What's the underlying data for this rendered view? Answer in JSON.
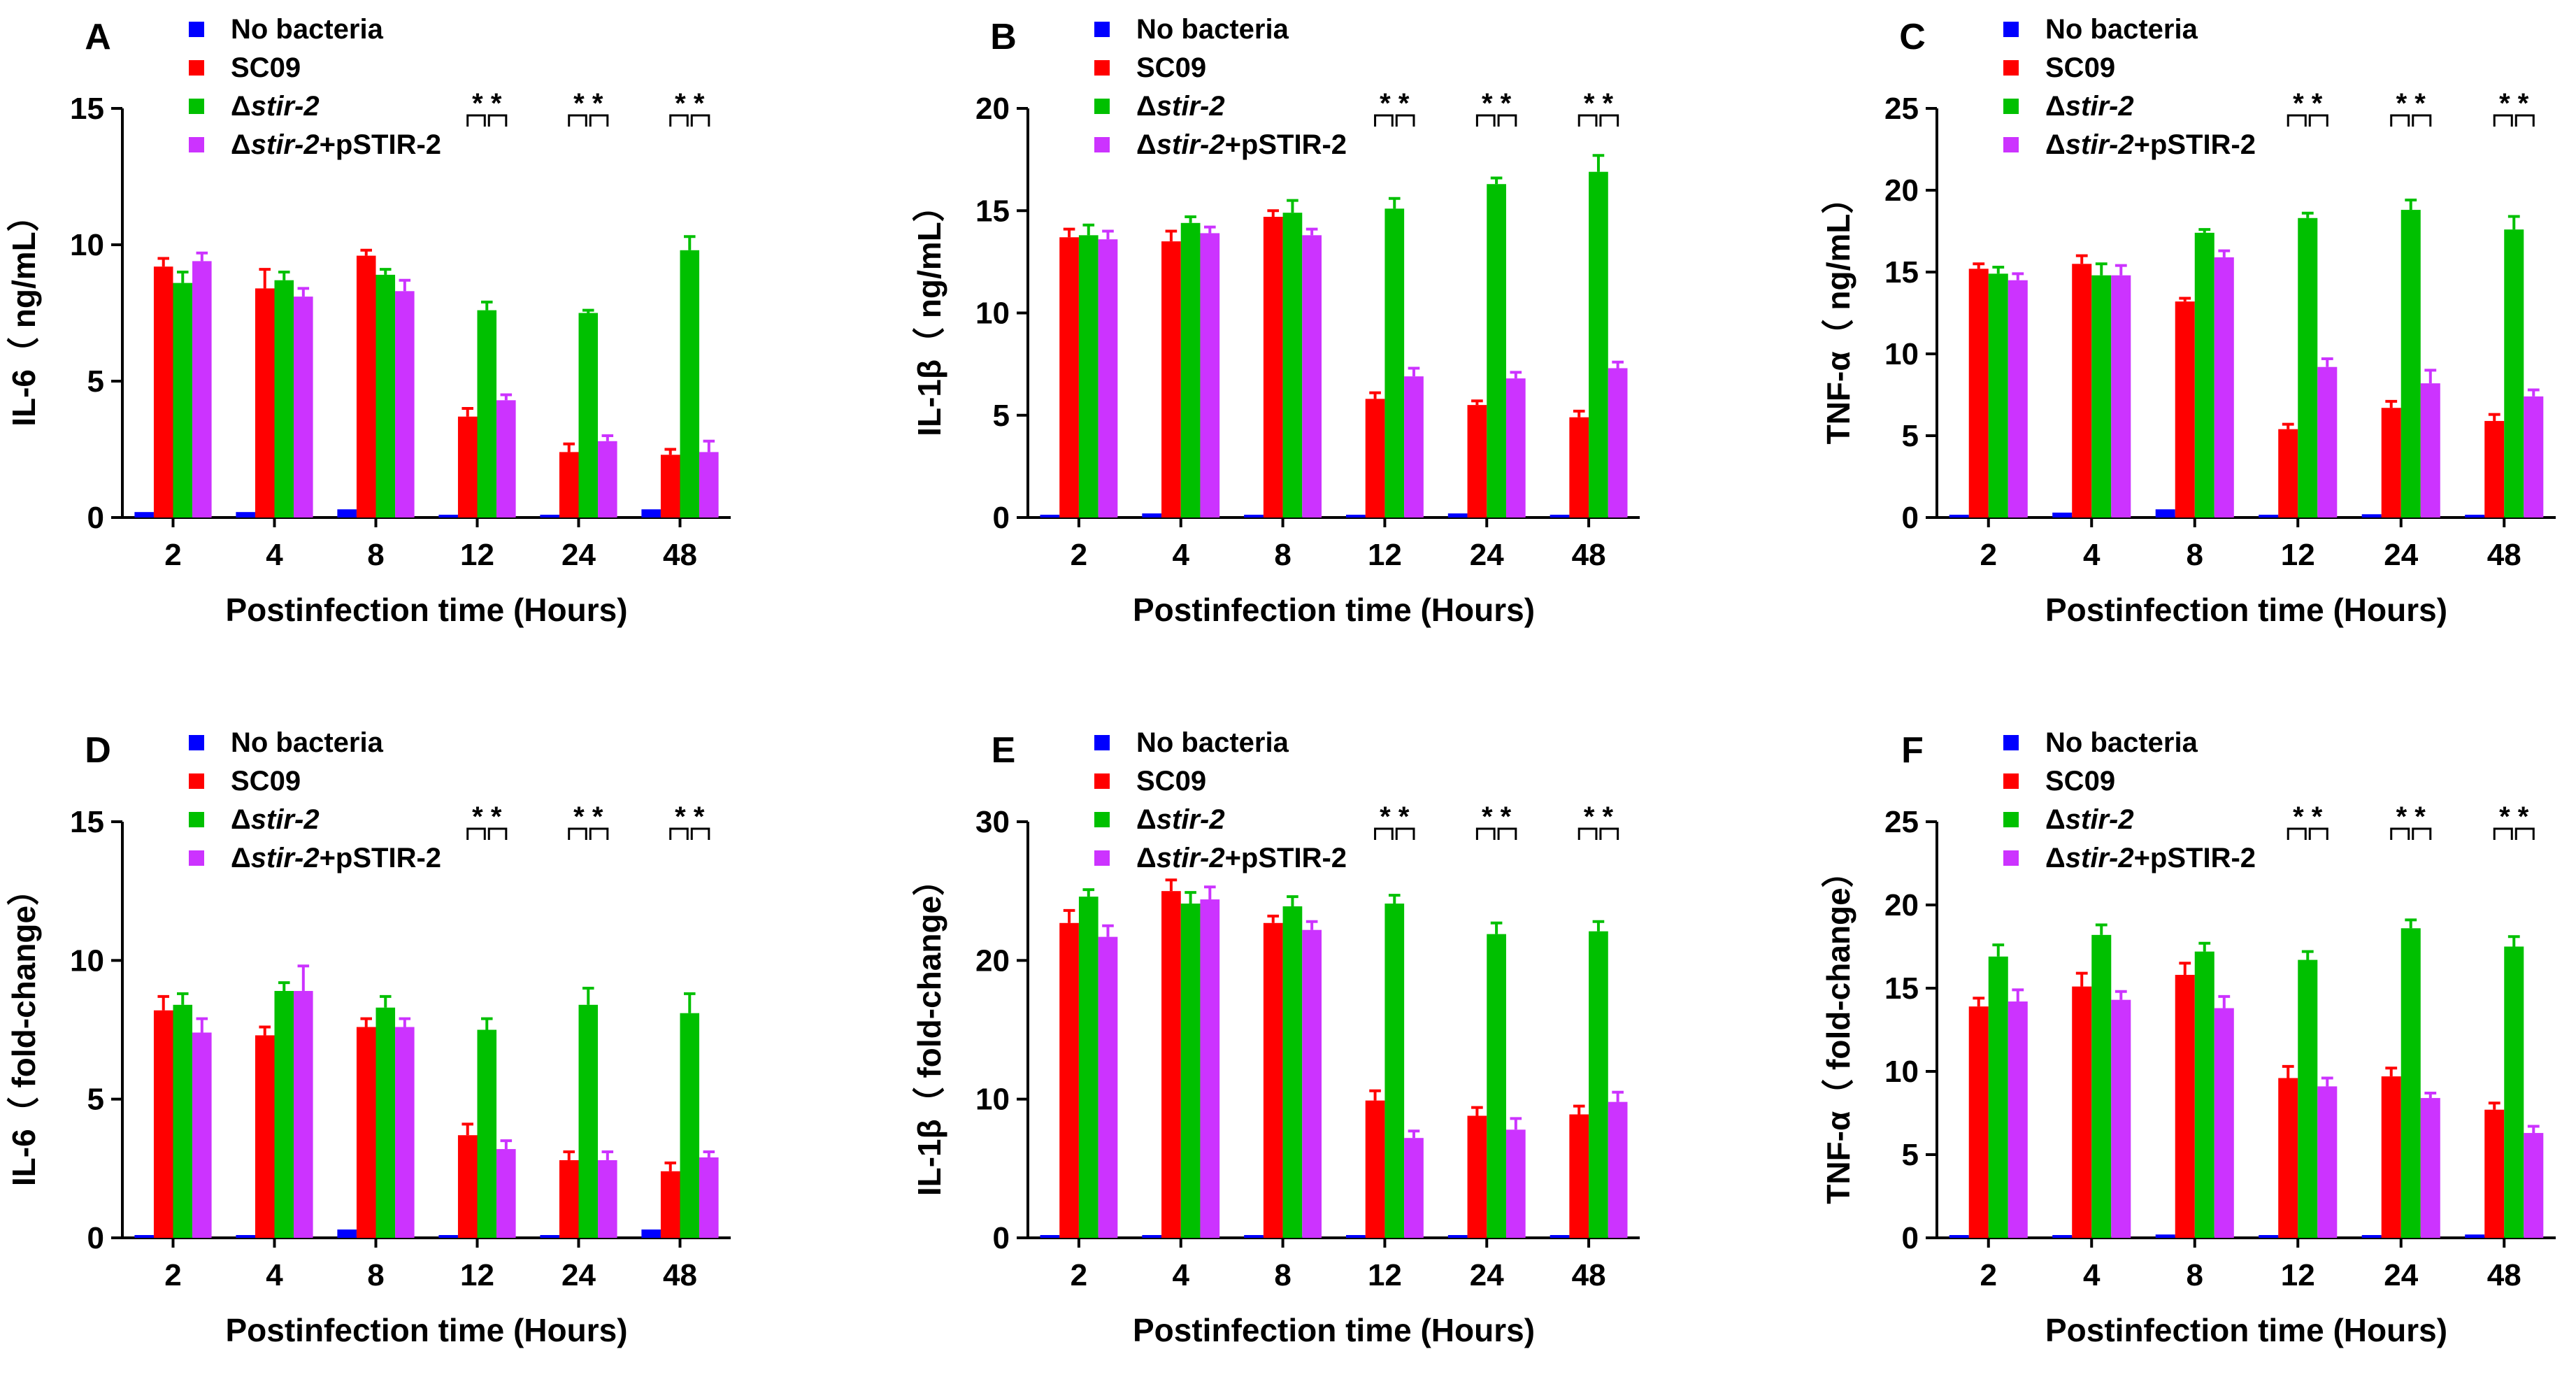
{
  "colors": {
    "No bacteria": "#0000ff",
    "SC09": "#ff0000",
    "stir2": "#00c000",
    "complement": "#cc33ff",
    "axis": "#000000"
  },
  "legend_entries": [
    {
      "prefix": "",
      "italic": "",
      "suffix": "No bacteria",
      "color_key": "No bacteria"
    },
    {
      "prefix": "",
      "italic": "",
      "suffix": "SC09",
      "color_key": "SC09"
    },
    {
      "prefix": "Δ",
      "italic": "stir-2",
      "suffix": "",
      "color_key": "stir2"
    },
    {
      "prefix": "Δ",
      "italic": "stir-2",
      "suffix": "+pSTIR-2",
      "color_key": "complement"
    }
  ],
  "chart_data": [
    {
      "type": "bar",
      "panel": "A",
      "title": "",
      "xlabel": "Postinfection time (Hours)",
      "ylabel": "IL-6（ ng/mL）",
      "categories": [
        "2",
        "4",
        "8",
        "12",
        "24",
        "48"
      ],
      "ylim": [
        0,
        15
      ],
      "yticks": [
        0,
        5,
        10,
        15
      ],
      "legend_position": "top-left",
      "significance": {
        "categories": [
          "12",
          "24",
          "48"
        ],
        "label": "* *"
      },
      "series": [
        {
          "name": "No bacteria",
          "values": [
            0.2,
            0.2,
            0.3,
            0.05,
            0.1,
            0.3
          ],
          "errors": [
            0.05,
            0.05,
            0.05,
            0.05,
            0.05,
            0.05
          ]
        },
        {
          "name": "SC09",
          "values": [
            9.2,
            8.4,
            9.6,
            3.7,
            2.4,
            2.3
          ],
          "errors": [
            0.3,
            0.7,
            0.2,
            0.3,
            0.3,
            0.2
          ]
        },
        {
          "name": "Δstir-2",
          "values": [
            8.6,
            8.7,
            8.9,
            7.6,
            7.5,
            9.8
          ],
          "errors": [
            0.4,
            0.3,
            0.2,
            0.3,
            0.1,
            0.5
          ]
        },
        {
          "name": "Δstir-2+pSTIR-2",
          "values": [
            9.4,
            8.1,
            8.3,
            4.3,
            2.8,
            2.4
          ],
          "errors": [
            0.3,
            0.3,
            0.4,
            0.2,
            0.2,
            0.4
          ]
        }
      ]
    },
    {
      "type": "bar",
      "panel": "B",
      "title": "",
      "xlabel": "Postinfection time (Hours)",
      "ylabel": "IL-1β（ ng/mL）",
      "categories": [
        "2",
        "4",
        "8",
        "12",
        "24",
        "48"
      ],
      "ylim": [
        0,
        20
      ],
      "yticks": [
        0,
        5,
        10,
        15,
        20
      ],
      "legend_position": "top-left",
      "significance": {
        "categories": [
          "12",
          "24",
          "48"
        ],
        "label": "* *"
      },
      "series": [
        {
          "name": "No bacteria",
          "values": [
            0.1,
            0.2,
            0.1,
            0.05,
            0.2,
            0.1
          ],
          "errors": [
            0.05,
            0.05,
            0.05,
            0.05,
            0.05,
            0.05
          ]
        },
        {
          "name": "SC09",
          "values": [
            13.7,
            13.5,
            14.7,
            5.8,
            5.5,
            4.9
          ],
          "errors": [
            0.4,
            0.5,
            0.3,
            0.3,
            0.2,
            0.3
          ]
        },
        {
          "name": "Δstir-2",
          "values": [
            13.8,
            14.4,
            14.9,
            15.1,
            16.3,
            16.9
          ],
          "errors": [
            0.5,
            0.3,
            0.6,
            0.5,
            0.3,
            0.8
          ]
        },
        {
          "name": "Δstir-2+pSTIR-2",
          "values": [
            13.6,
            13.9,
            13.8,
            6.9,
            6.8,
            7.3
          ],
          "errors": [
            0.4,
            0.3,
            0.3,
            0.4,
            0.3,
            0.3
          ]
        }
      ]
    },
    {
      "type": "bar",
      "panel": "C",
      "title": "",
      "xlabel": "Postinfection time (Hours)",
      "ylabel": "TNF-α（ ng/mL）",
      "categories": [
        "2",
        "4",
        "8",
        "12",
        "24",
        "48"
      ],
      "ylim": [
        0,
        25
      ],
      "yticks": [
        0,
        5,
        10,
        15,
        20,
        25
      ],
      "legend_position": "top-left",
      "significance": {
        "categories": [
          "12",
          "24",
          "48"
        ],
        "label": "* *"
      },
      "series": [
        {
          "name": "No bacteria",
          "values": [
            0.1,
            0.3,
            0.5,
            0.1,
            0.2,
            0.1
          ],
          "errors": [
            0.05,
            0.05,
            0.05,
            0.05,
            0.05,
            0.05
          ]
        },
        {
          "name": "SC09",
          "values": [
            15.2,
            15.5,
            13.2,
            5.4,
            6.7,
            5.9
          ],
          "errors": [
            0.3,
            0.5,
            0.2,
            0.3,
            0.4,
            0.4
          ]
        },
        {
          "name": "Δstir-2",
          "values": [
            14.9,
            14.8,
            17.4,
            18.3,
            18.8,
            17.6
          ],
          "errors": [
            0.4,
            0.7,
            0.2,
            0.3,
            0.6,
            0.8
          ]
        },
        {
          "name": "Δstir-2+pSTIR-2",
          "values": [
            14.5,
            14.8,
            15.9,
            9.2,
            8.2,
            7.4
          ],
          "errors": [
            0.4,
            0.6,
            0.4,
            0.5,
            0.8,
            0.4
          ]
        }
      ]
    },
    {
      "type": "bar",
      "panel": "D",
      "title": "",
      "xlabel": "Postinfection time (Hours)",
      "ylabel": "IL-6（ fold-change）",
      "categories": [
        "2",
        "4",
        "8",
        "12",
        "24",
        "48"
      ],
      "ylim": [
        0,
        15
      ],
      "yticks": [
        0,
        5,
        10,
        15
      ],
      "legend_position": "top-left",
      "significance": {
        "categories": [
          "12",
          "24",
          "48"
        ],
        "label": "* *"
      },
      "series": [
        {
          "name": "No bacteria",
          "values": [
            0.1,
            0.05,
            0.3,
            0.1,
            0.1,
            0.3
          ],
          "errors": [
            0.05,
            0.05,
            0.05,
            0.05,
            0.05,
            0.05
          ]
        },
        {
          "name": "SC09",
          "values": [
            8.2,
            7.3,
            7.6,
            3.7,
            2.8,
            2.4
          ],
          "errors": [
            0.5,
            0.3,
            0.3,
            0.4,
            0.3,
            0.3
          ]
        },
        {
          "name": "Δstir-2",
          "values": [
            8.4,
            8.9,
            8.3,
            7.5,
            8.4,
            8.1
          ],
          "errors": [
            0.4,
            0.3,
            0.4,
            0.4,
            0.6,
            0.7
          ]
        },
        {
          "name": "Δstir-2+pSTIR-2",
          "values": [
            7.4,
            8.9,
            7.6,
            3.2,
            2.8,
            2.9
          ],
          "errors": [
            0.5,
            0.9,
            0.3,
            0.3,
            0.3,
            0.2
          ]
        }
      ]
    },
    {
      "type": "bar",
      "panel": "E",
      "title": "",
      "xlabel": "Postinfection time (Hours)",
      "ylabel": "IL-1β（ fold-change）",
      "categories": [
        "2",
        "4",
        "8",
        "12",
        "24",
        "48"
      ],
      "ylim": [
        0,
        30
      ],
      "yticks": [
        0,
        10,
        20,
        30
      ],
      "legend_position": "top-left",
      "significance": {
        "categories": [
          "12",
          "24",
          "48"
        ],
        "label": "* *"
      },
      "series": [
        {
          "name": "No bacteria",
          "values": [
            0.1,
            0.1,
            0.1,
            0.1,
            0.2,
            0.2
          ],
          "errors": [
            0.05,
            0.05,
            0.05,
            0.05,
            0.05,
            0.05
          ]
        },
        {
          "name": "SC09",
          "values": [
            22.7,
            25.0,
            22.7,
            9.9,
            8.8,
            8.9
          ],
          "errors": [
            0.9,
            0.8,
            0.5,
            0.7,
            0.6,
            0.6
          ]
        },
        {
          "name": "Δstir-2",
          "values": [
            24.6,
            24.1,
            23.9,
            24.1,
            21.9,
            22.1
          ],
          "errors": [
            0.5,
            0.8,
            0.7,
            0.6,
            0.8,
            0.7
          ]
        },
        {
          "name": "Δstir-2+pSTIR-2",
          "values": [
            21.7,
            24.4,
            22.2,
            7.2,
            7.8,
            9.8
          ],
          "errors": [
            0.8,
            0.9,
            0.6,
            0.5,
            0.8,
            0.7
          ]
        }
      ]
    },
    {
      "type": "bar",
      "panel": "F",
      "title": "",
      "xlabel": "Postinfection time (Hours)",
      "ylabel": "TNF-α（ fold-change）",
      "categories": [
        "2",
        "4",
        "8",
        "12",
        "24",
        "48"
      ],
      "ylim": [
        0,
        25
      ],
      "yticks": [
        0,
        5,
        10,
        15,
        20,
        25
      ],
      "legend_position": "top-left",
      "significance": {
        "categories": [
          "12",
          "24",
          "48"
        ],
        "label": "* *"
      },
      "series": [
        {
          "name": "No bacteria",
          "values": [
            0.1,
            0.1,
            0.2,
            0.1,
            0.1,
            0.2
          ],
          "errors": [
            0.05,
            0.05,
            0.05,
            0.05,
            0.05,
            0.05
          ]
        },
        {
          "name": "SC09",
          "values": [
            13.9,
            15.1,
            15.8,
            9.6,
            9.7,
            7.7
          ],
          "errors": [
            0.5,
            0.8,
            0.7,
            0.7,
            0.5,
            0.4
          ]
        },
        {
          "name": "Δstir-2",
          "values": [
            16.9,
            18.2,
            17.2,
            16.7,
            18.6,
            17.5
          ],
          "errors": [
            0.7,
            0.6,
            0.5,
            0.5,
            0.5,
            0.6
          ]
        },
        {
          "name": "Δstir-2+pSTIR-2",
          "values": [
            14.2,
            14.3,
            13.8,
            9.1,
            8.4,
            6.3
          ],
          "errors": [
            0.7,
            0.5,
            0.7,
            0.5,
            0.3,
            0.4
          ]
        }
      ]
    }
  ]
}
